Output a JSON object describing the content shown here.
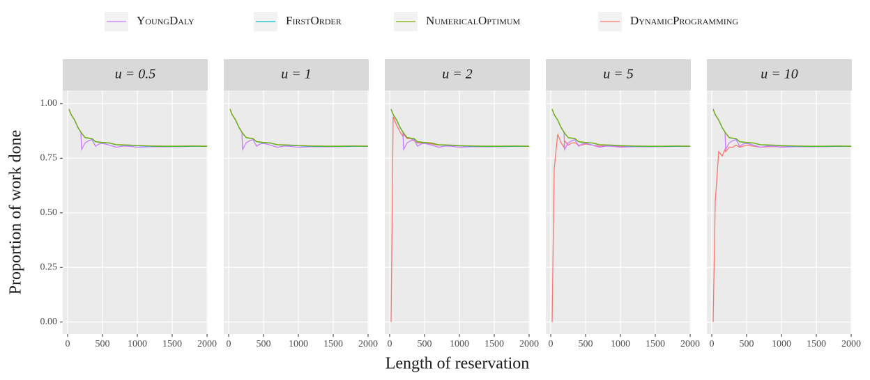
{
  "chart_data": {
    "type": "line",
    "xlabel": "Length of reservation",
    "ylabel": "Proportion of work done",
    "series": [
      {
        "name": "YoungDaly",
        "color": "#C77CFF"
      },
      {
        "name": "FirstOrder",
        "color": "#00BFC4"
      },
      {
        "name": "NumericalOptimum",
        "color": "#7CAE00"
      },
      {
        "name": "DynamicProgramming",
        "color": "#F8766D"
      }
    ],
    "x": [
      20,
      50,
      100,
      150,
      190,
      200,
      250,
      300,
      350,
      400,
      450,
      500,
      600,
      700,
      800,
      900,
      1000,
      1200,
      1400,
      1600,
      1800,
      2000
    ],
    "xlim": [
      -70,
      2010
    ],
    "xticks": [
      0,
      500,
      1000,
      1500,
      2000
    ],
    "ylim": [
      -0.055,
      1.06
    ],
    "yticks": [
      {
        "value": 0,
        "label": "0.00"
      },
      {
        "value": 0.25,
        "label": "0.25"
      },
      {
        "value": 0.5,
        "label": "0.50"
      },
      {
        "value": 0.75,
        "label": "0.75"
      },
      {
        "value": 1,
        "label": "1.00"
      }
    ],
    "grid": true,
    "facets": [
      {
        "title": "u = 0.5",
        "values": [
          [
            0.975,
            0.95,
            0.925,
            0.89,
            0.87,
            0.79,
            0.82,
            0.83,
            0.835,
            0.805,
            0.815,
            0.818,
            0.81,
            0.8,
            0.806,
            0.804,
            0.8,
            0.803,
            0.802,
            0.803,
            0.804,
            0.805
          ],
          [
            0.974,
            0.949,
            0.924,
            0.889,
            0.869,
            0.864,
            0.844,
            0.841,
            0.839,
            0.825,
            0.823,
            0.821,
            0.819,
            0.811,
            0.81,
            0.809,
            0.807,
            0.805,
            0.804,
            0.804,
            0.805,
            0.804
          ],
          [
            0.975,
            0.95,
            0.925,
            0.89,
            0.87,
            0.865,
            0.845,
            0.842,
            0.84,
            0.826,
            0.824,
            0.822,
            0.82,
            0.812,
            0.811,
            0.81,
            0.808,
            0.806,
            0.805,
            0.805,
            0.806,
            0.805
          ],
          [
            0.975,
            0.95,
            0.925,
            0.89,
            0.87,
            0.865,
            0.845,
            0.842,
            0.84,
            0.826,
            0.824,
            0.822,
            0.82,
            0.812,
            0.811,
            0.81,
            0.808,
            0.806,
            0.805,
            0.805,
            0.806,
            0.805
          ]
        ]
      },
      {
        "title": "u = 1",
        "values": [
          [
            0.975,
            0.95,
            0.925,
            0.89,
            0.87,
            0.79,
            0.82,
            0.83,
            0.835,
            0.805,
            0.815,
            0.818,
            0.81,
            0.8,
            0.806,
            0.804,
            0.8,
            0.803,
            0.802,
            0.803,
            0.804,
            0.805
          ],
          [
            0.974,
            0.949,
            0.924,
            0.889,
            0.869,
            0.864,
            0.844,
            0.841,
            0.839,
            0.825,
            0.823,
            0.821,
            0.819,
            0.811,
            0.81,
            0.809,
            0.807,
            0.805,
            0.804,
            0.804,
            0.805,
            0.804
          ],
          [
            0.975,
            0.95,
            0.925,
            0.89,
            0.87,
            0.865,
            0.845,
            0.842,
            0.84,
            0.826,
            0.824,
            0.822,
            0.82,
            0.812,
            0.811,
            0.81,
            0.808,
            0.806,
            0.805,
            0.805,
            0.806,
            0.805
          ],
          [
            0.975,
            0.95,
            0.925,
            0.89,
            0.87,
            0.865,
            0.845,
            0.842,
            0.84,
            0.826,
            0.824,
            0.822,
            0.82,
            0.812,
            0.811,
            0.81,
            0.808,
            0.806,
            0.805,
            0.805,
            0.806,
            0.805
          ]
        ]
      },
      {
        "title": "u = 2",
        "values": [
          [
            0.975,
            0.95,
            0.925,
            0.89,
            0.87,
            0.79,
            0.82,
            0.83,
            0.835,
            0.805,
            0.815,
            0.818,
            0.81,
            0.8,
            0.806,
            0.804,
            0.8,
            0.803,
            0.802,
            0.803,
            0.804,
            0.805
          ],
          [
            0.974,
            0.949,
            0.924,
            0.889,
            0.869,
            0.864,
            0.844,
            0.841,
            0.839,
            0.825,
            0.823,
            0.821,
            0.819,
            0.811,
            0.81,
            0.809,
            0.807,
            0.805,
            0.804,
            0.804,
            0.805,
            0.804
          ],
          [
            0.975,
            0.95,
            0.925,
            0.89,
            0.87,
            0.865,
            0.845,
            0.842,
            0.84,
            0.826,
            0.824,
            0.822,
            0.82,
            0.812,
            0.811,
            0.81,
            0.808,
            0.806,
            0.805,
            0.805,
            0.806,
            0.805
          ],
          [
            0.0,
            0.94,
            0.9,
            0.87,
            0.85,
            0.86,
            0.84,
            0.84,
            0.83,
            0.82,
            0.82,
            0.82,
            0.815,
            0.81,
            0.81,
            0.808,
            0.806,
            0.805,
            0.805,
            0.805,
            0.805,
            0.805
          ]
        ]
      },
      {
        "title": "u = 5",
        "values": [
          [
            0.975,
            0.95,
            0.925,
            0.89,
            0.87,
            0.79,
            0.82,
            0.83,
            0.835,
            0.805,
            0.815,
            0.818,
            0.81,
            0.8,
            0.806,
            0.804,
            0.8,
            0.803,
            0.802,
            0.803,
            0.804,
            0.805
          ],
          [
            0.974,
            0.949,
            0.924,
            0.889,
            0.869,
            0.864,
            0.844,
            0.841,
            0.839,
            0.825,
            0.823,
            0.821,
            0.819,
            0.811,
            0.81,
            0.809,
            0.807,
            0.805,
            0.804,
            0.804,
            0.805,
            0.804
          ],
          [
            0.975,
            0.95,
            0.925,
            0.89,
            0.87,
            0.865,
            0.845,
            0.842,
            0.84,
            0.826,
            0.824,
            0.822,
            0.82,
            0.812,
            0.811,
            0.81,
            0.808,
            0.806,
            0.805,
            0.805,
            0.806,
            0.805
          ],
          [
            0.0,
            0.7,
            0.86,
            0.82,
            0.8,
            0.83,
            0.81,
            0.82,
            0.82,
            0.81,
            0.81,
            0.815,
            0.81,
            0.805,
            0.806,
            0.805,
            0.804,
            0.804,
            0.804,
            0.804,
            0.805,
            0.805
          ]
        ]
      },
      {
        "title": "u = 10",
        "values": [
          [
            0.975,
            0.95,
            0.925,
            0.89,
            0.87,
            0.79,
            0.82,
            0.83,
            0.835,
            0.805,
            0.815,
            0.818,
            0.81,
            0.8,
            0.806,
            0.804,
            0.8,
            0.803,
            0.802,
            0.803,
            0.804,
            0.805
          ],
          [
            0.974,
            0.949,
            0.924,
            0.889,
            0.869,
            0.864,
            0.844,
            0.841,
            0.839,
            0.825,
            0.823,
            0.821,
            0.819,
            0.811,
            0.81,
            0.809,
            0.807,
            0.805,
            0.804,
            0.804,
            0.805,
            0.804
          ],
          [
            0.975,
            0.95,
            0.925,
            0.89,
            0.87,
            0.865,
            0.845,
            0.842,
            0.84,
            0.826,
            0.824,
            0.822,
            0.82,
            0.812,
            0.811,
            0.81,
            0.808,
            0.806,
            0.805,
            0.805,
            0.806,
            0.805
          ],
          [
            0.0,
            0.55,
            0.78,
            0.76,
            0.79,
            0.78,
            0.8,
            0.8,
            0.81,
            0.8,
            0.805,
            0.81,
            0.805,
            0.8,
            0.803,
            0.803,
            0.802,
            0.803,
            0.803,
            0.804,
            0.804,
            0.805
          ]
        ]
      }
    ]
  }
}
